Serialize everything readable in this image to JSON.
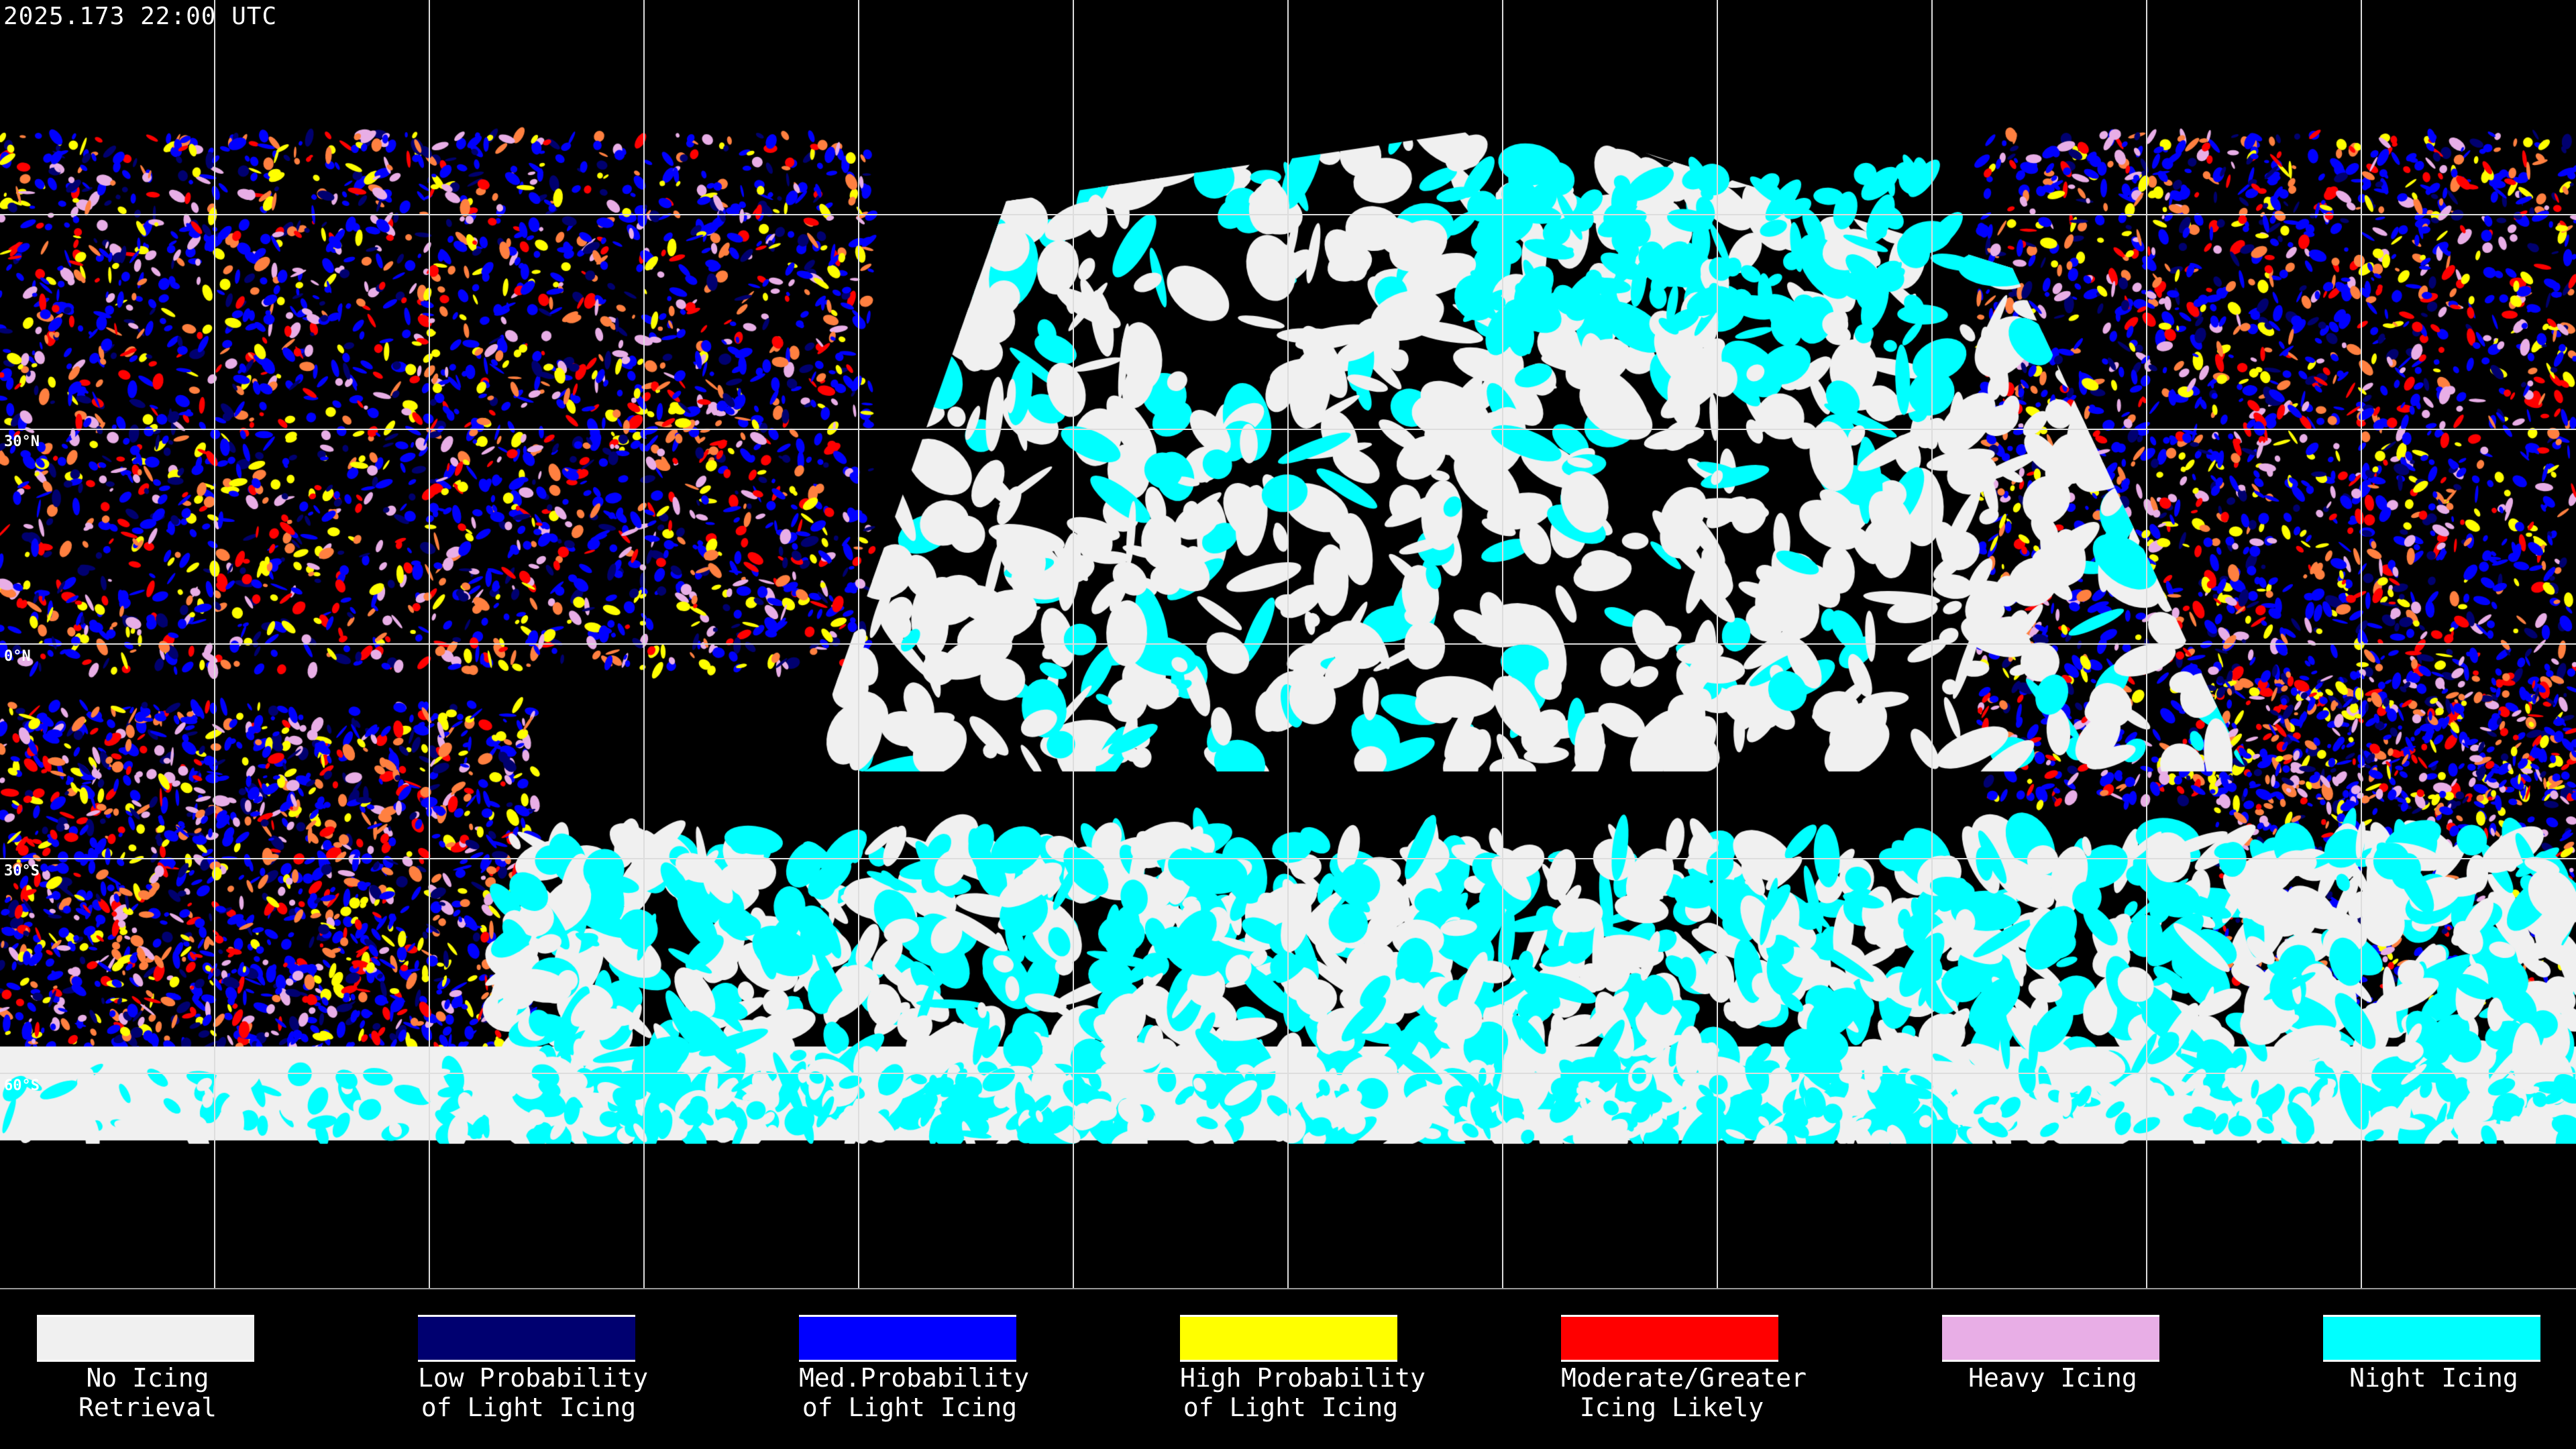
{
  "header": {
    "timestamp": "2025.173 22:00 UTC"
  },
  "latitude_labels": [
    "30°N",
    "0°N",
    "30°S",
    "60°S"
  ],
  "legend": [
    {
      "line1": "No Icing",
      "line2": "Retrieval",
      "color": "#f0f0f0"
    },
    {
      "line1": "Low Probability",
      "line2": "of Light Icing",
      "color": "#000070"
    },
    {
      "line1": "Med.Probability",
      "line2": "of Light Icing",
      "color": "#0000ff"
    },
    {
      "line1": "High Probability",
      "line2": "of Light Icing",
      "color": "#ffff00"
    },
    {
      "line1": "Moderate/Greater",
      "line2": "Icing Likely",
      "color": "#ff0000"
    },
    {
      "line1": "Heavy Icing",
      "line2": "",
      "color": "#e8aee6"
    },
    {
      "line1": "Night Icing",
      "line2": "",
      "color": "#00ffff"
    }
  ]
}
